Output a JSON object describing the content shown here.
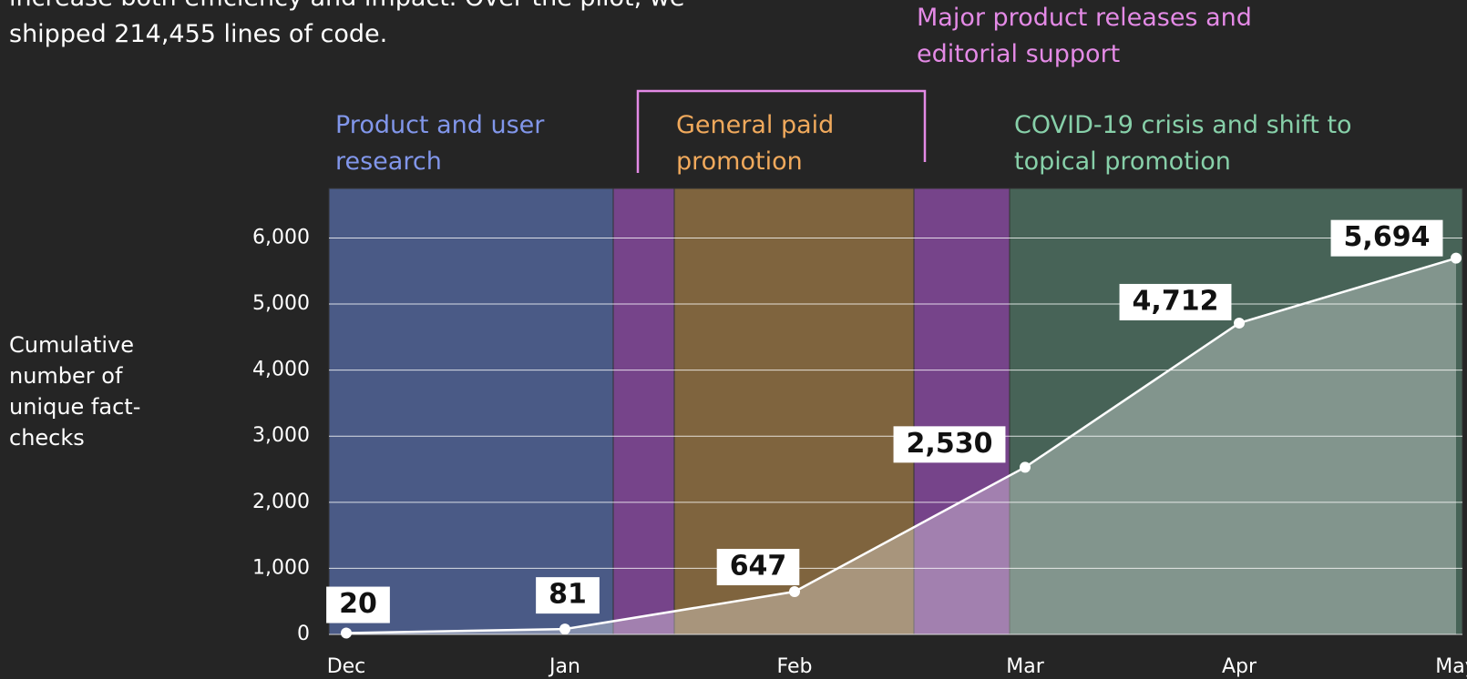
{
  "intro": [
    "increase both efficiency and impact. Over the pilot, we",
    "shipped 214,455 lines of code."
  ],
  "chart_data": {
    "type": "line",
    "y_label": "Cumulative number of unique fact-checks",
    "categories": [
      "Dec",
      "Jan",
      "Feb",
      "Mar",
      "Apr",
      "May"
    ],
    "series": [
      {
        "color": "#ffffff",
        "values": [
          20,
          81,
          647,
          2530,
          4712,
          5694
        ],
        "value_labels": [
          "20",
          "81",
          "647",
          "2,530",
          "4,712",
          "5,694"
        ]
      }
    ],
    "ylim": [
      0,
      6750
    ],
    "yticks": [
      0,
      {
        "value": 1000,
        "label": "1,000"
      },
      {
        "value": 2000,
        "label": "2,000"
      },
      {
        "value": 3000,
        "label": "3,000"
      },
      {
        "value": 4000,
        "label": "4,000"
      },
      {
        "value": 5000,
        "label": "5,000"
      },
      {
        "value": 6000,
        "label": "6,000"
      }
    ],
    "grid": true,
    "annotations": [
      {
        "text": "Product and user research",
        "color": "#8196ea"
      },
      {
        "text": "Major product releases and editorial support",
        "color": "#e48ae6"
      },
      {
        "text": "General paid promotion",
        "color": "#f0a95c"
      },
      {
        "text": "COVID-19 crisis and shift to topical promotion",
        "color": "#87d0a9"
      }
    ]
  }
}
